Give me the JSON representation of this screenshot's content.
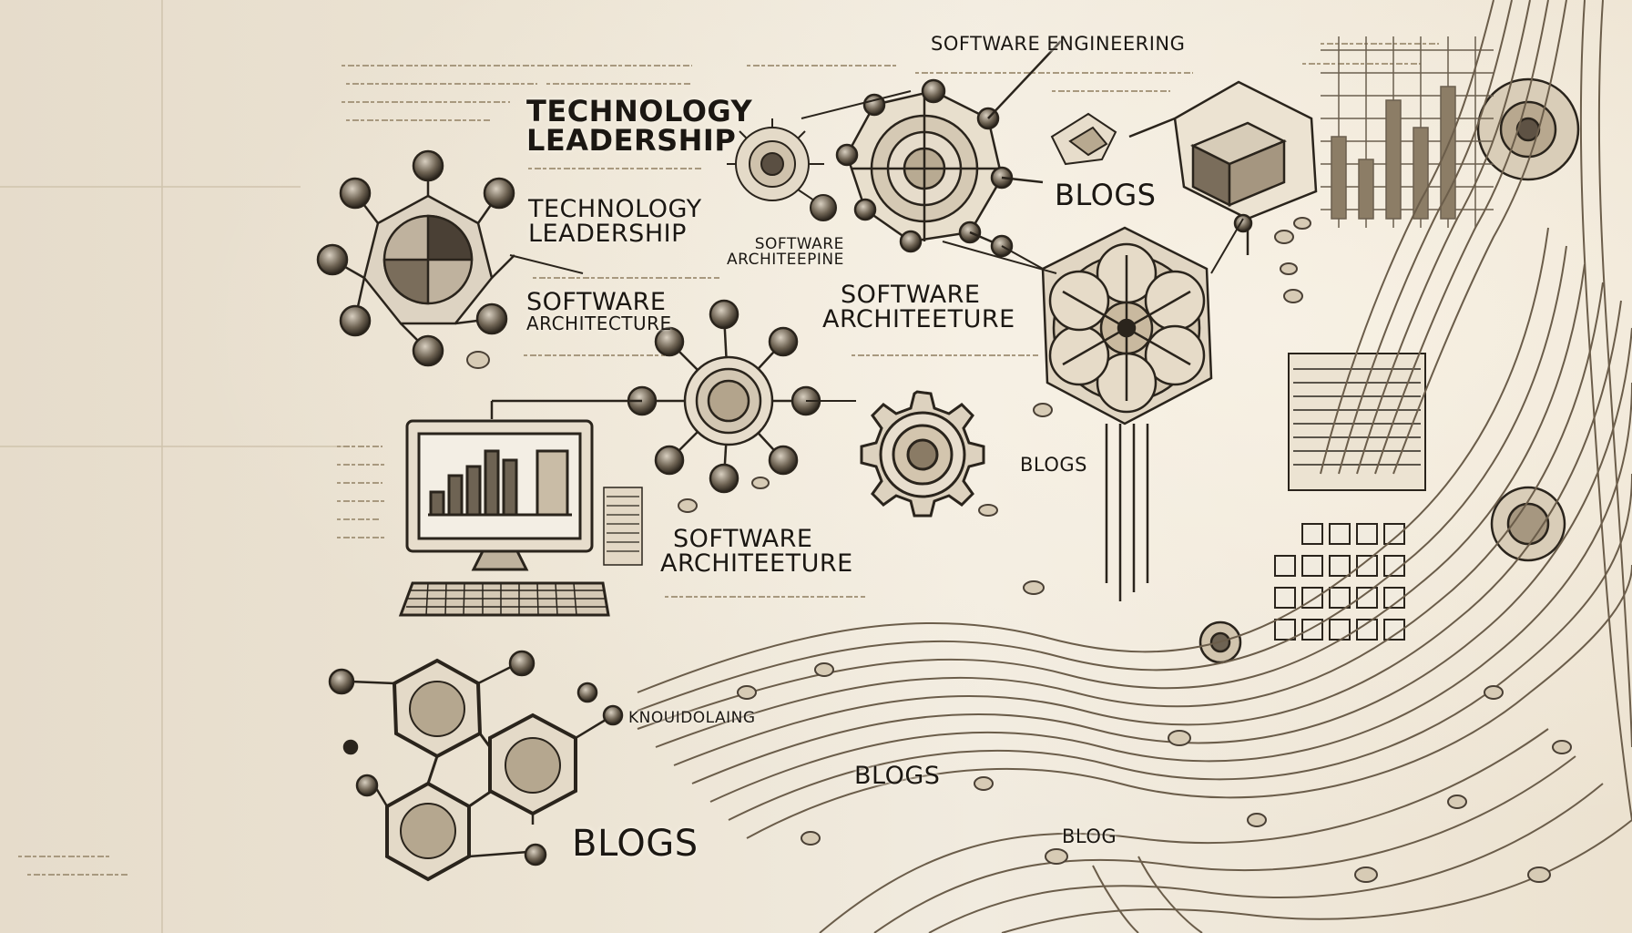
{
  "labels": {
    "software_engineering": "SOFTWARE ENGINEERING",
    "tech_leadership_1": {
      "line1": "TECHNOLOGY",
      "line2": "LEADERSHIP"
    },
    "tech_leadership_2": {
      "line1": "TECHNOLOGY",
      "line2": "LEADERSHIP"
    },
    "software_architeeping": {
      "line1": "SOFTWARE",
      "line2": "ARCHITEEPINE"
    },
    "software_architecture_left": {
      "line1": "SOFTWARE",
      "line2": "ARCHITECTURE"
    },
    "software_architecture_mid": {
      "line1": "SOFTWARE",
      "line2": "ARCHITEETURE"
    },
    "software_architecture_bottom": {
      "line1": "SOFTWARE",
      "line2": "ARCHITEETURE"
    },
    "blogs_top": "BLOGS",
    "blogs_mid": "BLOGS",
    "blogs_lower": "BLOGS",
    "blogs_bottom": "BLOGS",
    "blog_small": "BLOG",
    "knowledge": "KNOUIDOLAING"
  },
  "colors": {
    "ink": "#2a241c",
    "paper": "#ece4d4",
    "sepia": "#8c7a60"
  }
}
